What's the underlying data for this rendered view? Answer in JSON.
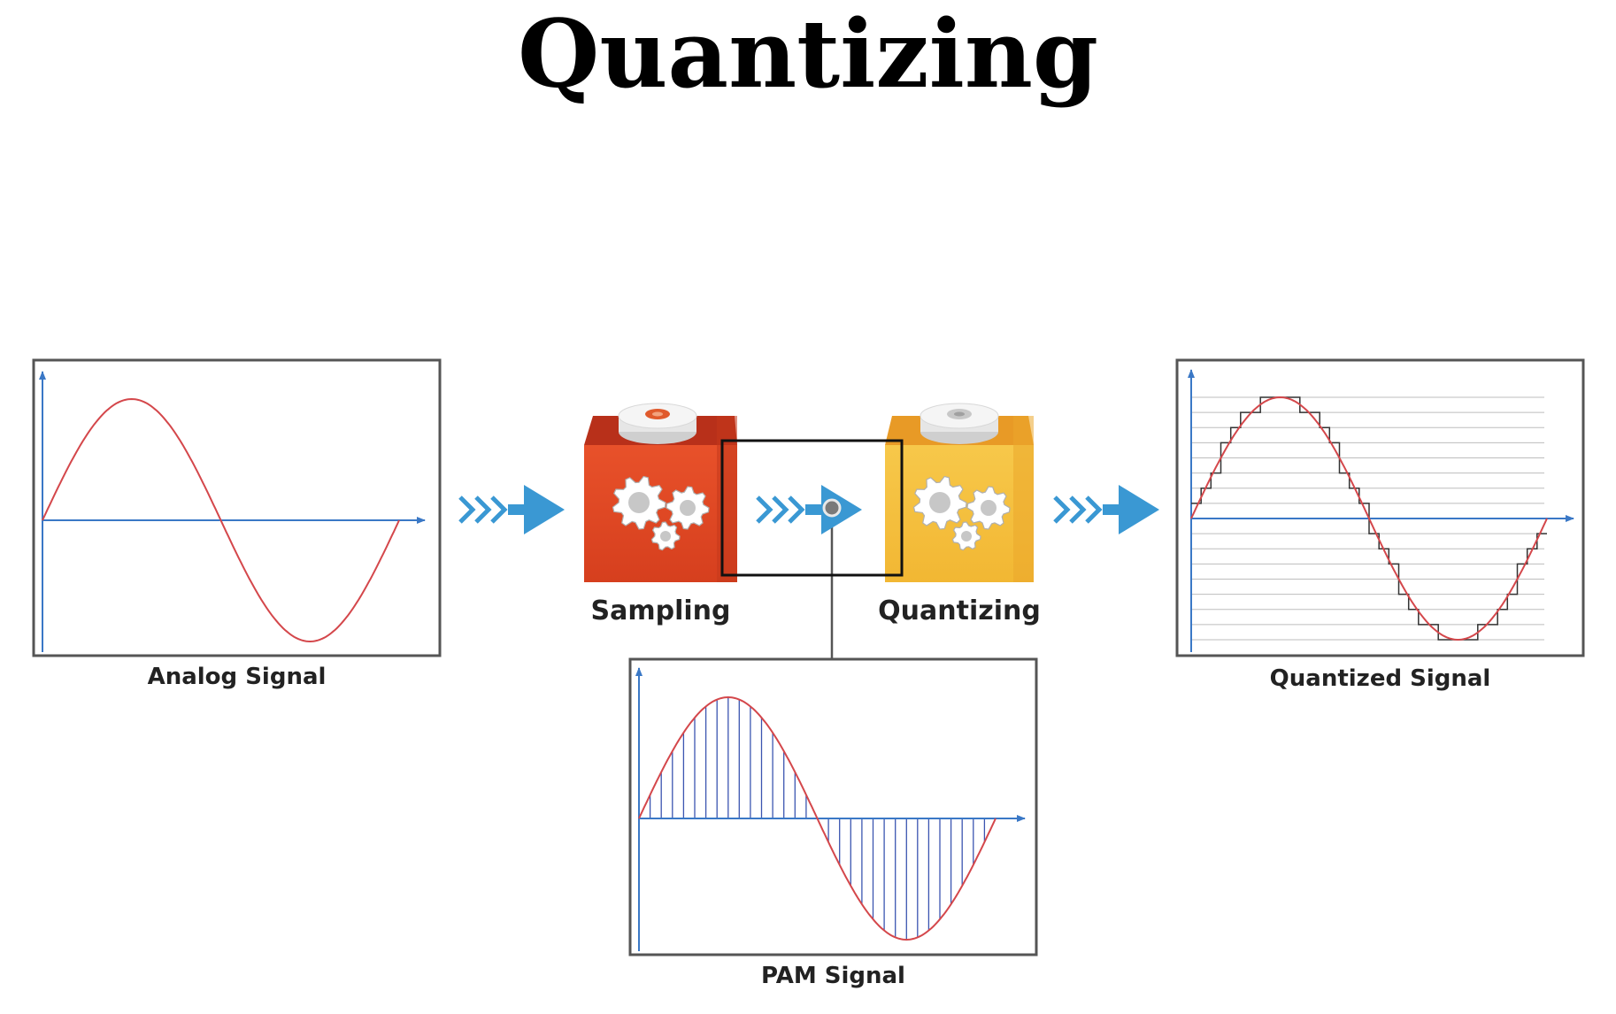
{
  "title": "Quantizing",
  "panels": {
    "analog": {
      "label": "Analog Signal"
    },
    "pam": {
      "label": "PAM Signal"
    },
    "quantized": {
      "label": "Quantized Signal"
    }
  },
  "blocks": {
    "sampling": {
      "label": "Sampling",
      "color": "#e04a24"
    },
    "quantizing": {
      "label": "Quantizing",
      "color": "#f4bd3c"
    }
  },
  "colors": {
    "signal": "#d4474b",
    "axis": "#3a78c6",
    "arrow": "#3a98d3",
    "step": "#333333",
    "grid": "#bdbdbd",
    "sample": "#3b55b0"
  }
}
